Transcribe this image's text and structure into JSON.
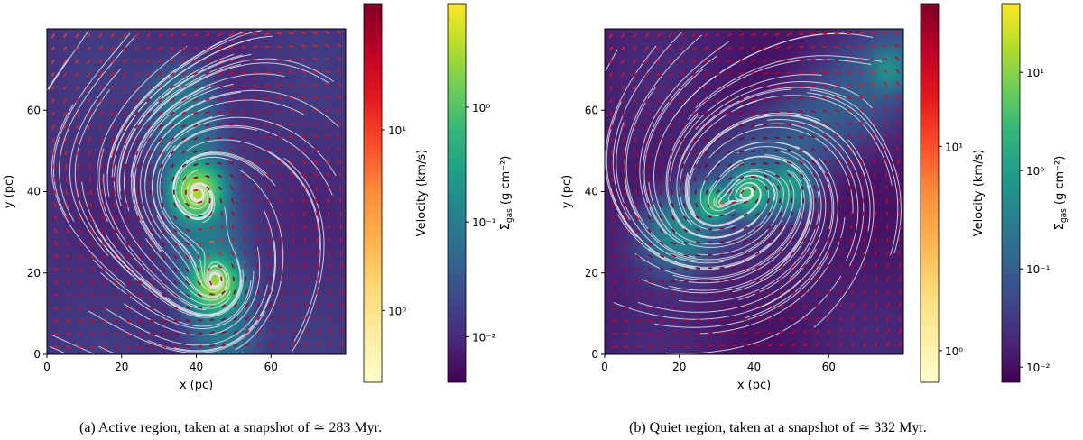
{
  "captions": [
    "(a) Active region, taken at a snapshot of ≃ 283 Myr.",
    "(b) Quiet region, taken at a snapshot of ≃ 332 Myr."
  ],
  "colors": {
    "velocity_cmap": [
      "#ffffcc",
      "#ffeda0",
      "#fed976",
      "#feb24c",
      "#fd8d3c",
      "#fc4e2a",
      "#e31a1c",
      "#bd0026",
      "#800026"
    ],
    "density_cmap": [
      "#440154",
      "#482878",
      "#3e4989",
      "#31688e",
      "#26828e",
      "#1f9e89",
      "#35b779",
      "#6ece58",
      "#b5de2b",
      "#fde725"
    ],
    "streamline": "#e6e6f0"
  },
  "chart_data": [
    {
      "type": "heatmap",
      "panel": "a",
      "xlabel": "x (pc)",
      "ylabel": "y (pc)",
      "xlim": [
        0,
        80
      ],
      "ylim": [
        0,
        80
      ],
      "xticks": [
        0,
        20,
        40,
        60
      ],
      "yticks": [
        0,
        20,
        40,
        60
      ],
      "background_density": 0.012,
      "dense_clumps": [
        {
          "x": 40,
          "y": 40,
          "sigma_pc": 3.0,
          "peak": 3.0
        },
        {
          "x": 45,
          "y": 17,
          "sigma_pc": 3.0,
          "peak": 2.5
        }
      ],
      "filament": {
        "x_start": 36,
        "y_start": 62,
        "x_end": 47,
        "y_end": 5,
        "width_pc": 5
      },
      "velocity_colorbar": {
        "label": "Velocity (km/s)",
        "scale": "log",
        "range": [
          0.4,
          50
        ],
        "ticks": [
          1,
          10
        ],
        "tick_labels": [
          "10⁰",
          "10¹"
        ]
      },
      "density_colorbar": {
        "label_main": "Σ",
        "label_sub": "gas",
        "label_unit": " (g cm⁻²)",
        "scale": "log",
        "range": [
          0.004,
          8
        ],
        "ticks": [
          0.01,
          0.1,
          1
        ],
        "tick_labels": [
          "10⁻²",
          "10⁻¹",
          "10⁰"
        ]
      }
    },
    {
      "type": "heatmap",
      "panel": "b",
      "xlabel": "x (pc)",
      "ylabel": "y (pc)",
      "xlim": [
        0,
        80
      ],
      "ylim": [
        0,
        80
      ],
      "xticks": [
        0,
        20,
        40,
        60
      ],
      "yticks": [
        0,
        20,
        40,
        60
      ],
      "background_density": 0.015,
      "dense_clumps": [
        {
          "x": 29,
          "y": 37,
          "sigma_pc": 2.0,
          "peak": 3.0
        },
        {
          "x": 39,
          "y": 40,
          "sigma_pc": 2.5,
          "peak": 3.0
        },
        {
          "x": 49,
          "y": 41,
          "sigma_pc": 3.0,
          "peak": 1.0
        },
        {
          "x": 20,
          "y": 30,
          "sigma_pc": 4.0,
          "peak": 0.4
        },
        {
          "x": 76,
          "y": 70,
          "sigma_pc": 2.5,
          "peak": 0.5
        }
      ],
      "filament": {
        "x_start": 18,
        "y_start": 28,
        "x_end": 78,
        "y_end": 72,
        "width_pc": 6
      },
      "velocity_colorbar": {
        "label": "Velocity (km/s)",
        "scale": "log",
        "range": [
          0.7,
          50
        ],
        "ticks": [
          1,
          10
        ],
        "tick_labels": [
          "10⁰",
          "10¹"
        ]
      },
      "density_colorbar": {
        "label_main": "Σ",
        "label_sub": "gas",
        "label_unit": " (g cm⁻²)",
        "scale": "log",
        "range": [
          0.007,
          50
        ],
        "ticks": [
          0.01,
          0.1,
          1,
          10
        ],
        "tick_labels": [
          "10⁻²",
          "10⁻¹",
          "10⁰",
          "10¹"
        ]
      }
    }
  ]
}
